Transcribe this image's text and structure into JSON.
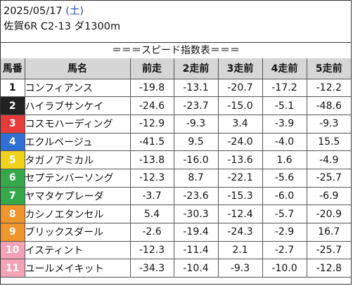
{
  "header": {
    "date": "2025/05/17 ",
    "dow_open": "(",
    "dow": "土",
    "dow_close": ")",
    "race": "佐賀6R C2-13 ダ1300m"
  },
  "caption": "＝＝＝スピード指数表＝＝＝",
  "columns": [
    "馬番",
    "馬名",
    "前走",
    "2走前",
    "3走前",
    "4走前",
    "5走前"
  ],
  "rows": [
    {
      "no": "1",
      "name": "コンフィアンス",
      "v": [
        "-19.8",
        "-13.1",
        "-20.7",
        "-17.2",
        "-12.2"
      ],
      "bg": "#ffffff",
      "fg": "#111111"
    },
    {
      "no": "2",
      "name": "ハイラブサンケイ",
      "v": [
        "-24.6",
        "-23.7",
        "-15.0",
        "-5.1",
        "-48.6"
      ],
      "bg": "#222222",
      "fg": "#ffffff"
    },
    {
      "no": "3",
      "name": "コスモハーディング",
      "v": [
        "-12.9",
        "-9.3",
        "3.4",
        "-3.9",
        "-9.3"
      ],
      "bg": "#e53b3b",
      "fg": "#ffffff"
    },
    {
      "no": "4",
      "name": "エクルベージュ",
      "v": [
        "-41.5",
        "9.5",
        "-24.0",
        "-4.0",
        "15.5"
      ],
      "bg": "#2f6fd6",
      "fg": "#ffffff"
    },
    {
      "no": "5",
      "name": "タガノアミカル",
      "v": [
        "-13.8",
        "-16.0",
        "-13.6",
        "1.6",
        "-4.9"
      ],
      "bg": "#f0d21c",
      "fg": "#ffffff"
    },
    {
      "no": "6",
      "name": "セプテンバーソング",
      "v": [
        "-12.3",
        "8.7",
        "-22.1",
        "-5.6",
        "-25.7"
      ],
      "bg": "#35a84a",
      "fg": "#ffffff"
    },
    {
      "no": "7",
      "name": "ヤマタケプレーダ",
      "v": [
        "-3.7",
        "-23.6",
        "-15.3",
        "-6.0",
        "-6.9"
      ],
      "bg": "#35a84a",
      "fg": "#ffffff"
    },
    {
      "no": "8",
      "name": "カシノエタンセル",
      "v": [
        "5.4",
        "-30.3",
        "-12.4",
        "-5.7",
        "-20.9"
      ],
      "bg": "#f0952a",
      "fg": "#ffffff"
    },
    {
      "no": "9",
      "name": "ブリックスダール",
      "v": [
        "-2.6",
        "-19.4",
        "-24.3",
        "-2.9",
        "16.7"
      ],
      "bg": "#f0952a",
      "fg": "#ffffff"
    },
    {
      "no": "10",
      "name": "イスティント",
      "v": [
        "-12.3",
        "-11.4",
        "2.1",
        "-2.7",
        "-25.7"
      ],
      "bg": "#f4a3b6",
      "fg": "#ffffff"
    },
    {
      "no": "11",
      "name": "ユールメイキット",
      "v": [
        "-34.3",
        "-10.4",
        "-9.3",
        "-10.0",
        "-12.8"
      ],
      "bg": "#f4a3b6",
      "fg": "#ffffff"
    }
  ]
}
